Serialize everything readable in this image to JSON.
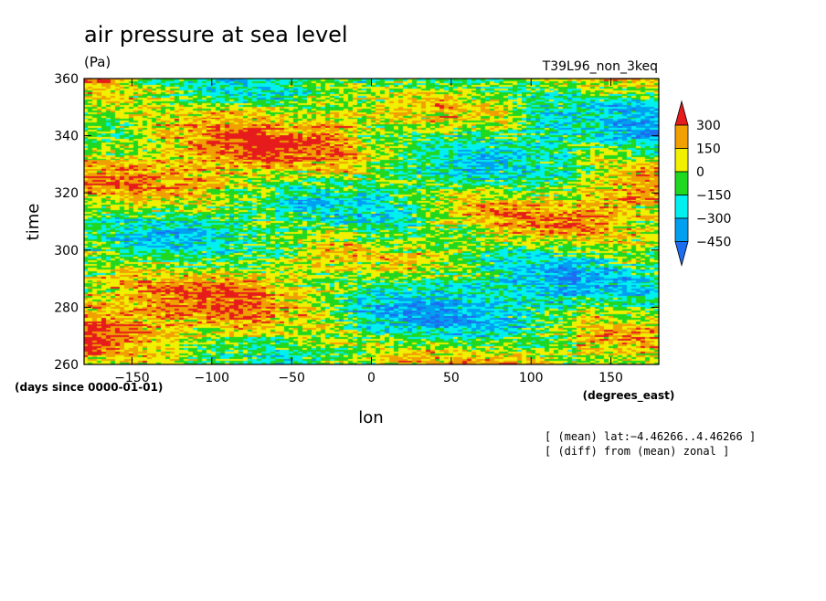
{
  "colors": {
    "bins": [
      "#1e6cf0",
      "#00a0f0",
      "#00f0f0",
      "#20d820",
      "#f0f000",
      "#f0a000",
      "#e61c1c"
    ],
    "background": "#ffffff"
  },
  "chart_data": {
    "type": "heatmap",
    "title": "air pressure at sea level",
    "units": "(Pa)",
    "run_label": "T39L96_non_3keq",
    "xlabel": "lon",
    "ylabel": "time",
    "x_units": "(degrees_east)",
    "y_units": "(days since 0000-01-01)",
    "xlim": [
      -180,
      180
    ],
    "ylim": [
      260,
      360
    ],
    "xticks": [
      -150,
      -100,
      -50,
      0,
      50,
      100,
      150
    ],
    "yticks": [
      260,
      280,
      300,
      320,
      340,
      360
    ],
    "xtick_labels": [
      "−150",
      "−100",
      "−50",
      "0",
      "50",
      "100",
      "150"
    ],
    "ytick_labels": [
      "260",
      "280",
      "300",
      "320",
      "340",
      "360"
    ],
    "colorbar": {
      "levels": [
        -450,
        -300,
        -150,
        0,
        150,
        300
      ],
      "labels": [
        "300",
        "150",
        "0",
        "−150",
        "−300",
        "−450"
      ],
      "extend": "both"
    },
    "notes": [
      "[ (mean) lat:−4.46266..4.46266 ]",
      "[ (diff) from (mean) zonal ]"
    ]
  }
}
